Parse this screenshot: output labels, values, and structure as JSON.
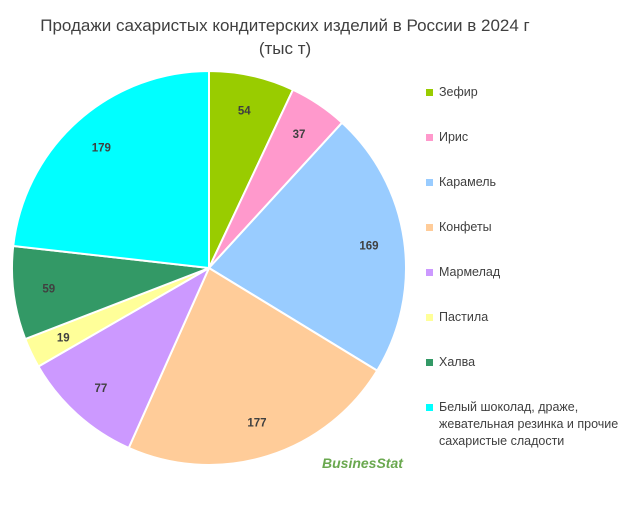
{
  "chart_data": {
    "type": "pie",
    "title": "Продажи сахаристых кондитерских изделий в России в 2024 г",
    "subtitle": "(тыс т)",
    "legend_position": "right",
    "slices": [
      {
        "label": "Зефир",
        "value": 54,
        "color": "#99cc00"
      },
      {
        "label": "Ирис",
        "value": 37,
        "color": "#ff99cc"
      },
      {
        "label": "Карамель",
        "value": 169,
        "color": "#99ccff"
      },
      {
        "label": "Конфеты",
        "value": 177,
        "color": "#ffcc99"
      },
      {
        "label": "Мармелад",
        "value": 77,
        "color": "#cc99ff"
      },
      {
        "label": "Пастила",
        "value": 19,
        "color": "#ffff99"
      },
      {
        "label": "Халва",
        "value": 59,
        "color": "#339966"
      },
      {
        "label": "Белый шоколад, драже, жевательная резинка и прочие сахаристые сладости",
        "value": 179,
        "color": "#00ffff"
      }
    ]
  },
  "watermark": "BusinesStat"
}
